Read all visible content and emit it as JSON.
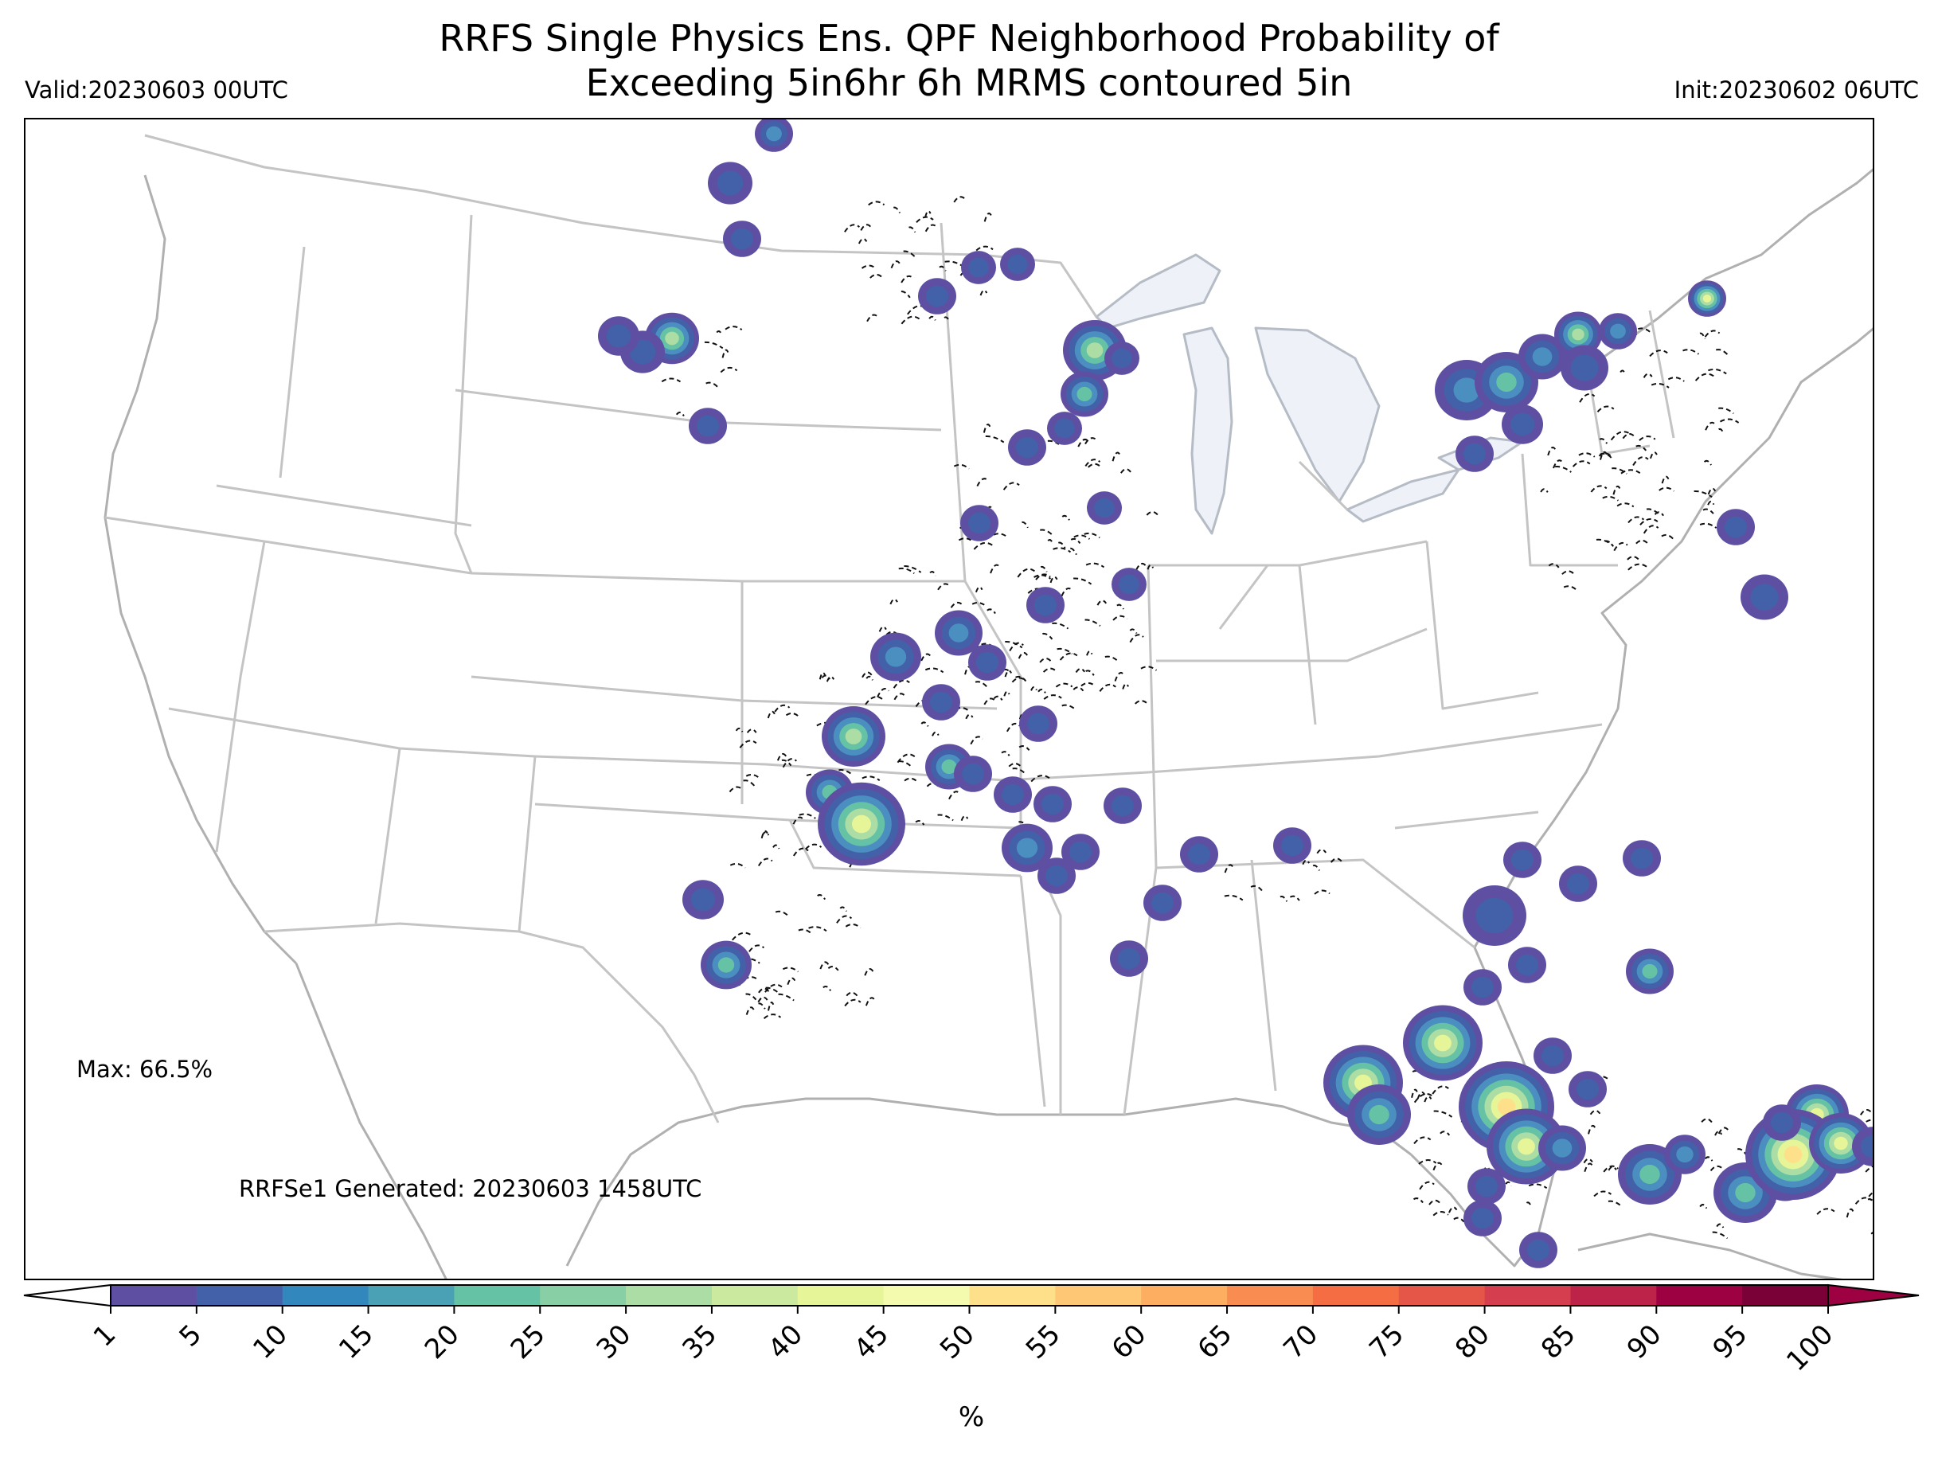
{
  "header": {
    "title_line1": "RRFS Single Physics Ens. QPF Neighborhood Probability of",
    "title_line2": "Exceeding 5in6hr 6h MRMS contoured 5in",
    "valid": "Valid:20230603 00UTC",
    "init": "Init:20230602 06UTC"
  },
  "annotations": {
    "max": "Max: 66.5%",
    "generated": "RRFSe1 Generated: 20230603 1458UTC"
  },
  "colorbar": {
    "label": "%",
    "ticks": [
      "1",
      "5",
      "10",
      "15",
      "20",
      "25",
      "30",
      "35",
      "40",
      "45",
      "50",
      "55",
      "60",
      "65",
      "70",
      "75",
      "80",
      "85",
      "90",
      "95",
      "100"
    ],
    "colors": [
      "#5e4fa2",
      "#4361a8",
      "#3288bd",
      "#4aa0b4",
      "#66c2a5",
      "#89cfa5",
      "#abdda4",
      "#cbe99f",
      "#e6f598",
      "#f5fbae",
      "#fee08b",
      "#fdc776",
      "#fdae61",
      "#f88c51",
      "#f46d43",
      "#e55649",
      "#d53e4f",
      "#bd2248",
      "#9e0142",
      "#7a0138"
    ],
    "under_color": "#ffffff",
    "over_color": "#9e0142"
  },
  "map": {
    "projection": "Lambert Conformal (CONUS)",
    "blob_levels": [
      "#5e4fa2",
      "#4361a8",
      "#4a8fbf",
      "#66c2a5",
      "#abdda4",
      "#e6f598",
      "#fee08b",
      "#fdae61"
    ]
  }
}
